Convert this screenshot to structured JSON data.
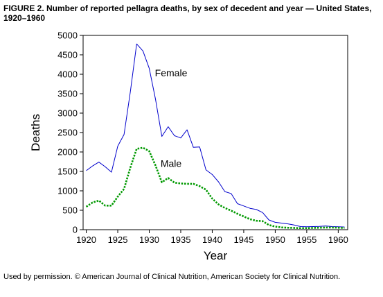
{
  "figure": {
    "title": "FIGURE 2. Number of reported pellagra deaths, by sex of decedent and year — United States, 1920–1960",
    "footnote": "Used by permission. © American Journal of Clinical Nutrition, American Society for Clinical Nutrition."
  },
  "chart_data": {
    "type": "line",
    "title": "FIGURE 2. Number of reported pellagra deaths, by sex of decedent and year — United States, 1920–1960",
    "xlabel": "Year",
    "ylabel": "Deaths",
    "xlim": [
      1919.5,
      1961.5
    ],
    "ylim": [
      0,
      5000
    ],
    "x_ticks": [
      1920,
      1925,
      1930,
      1935,
      1940,
      1945,
      1950,
      1955,
      1960
    ],
    "y_ticks": [
      0,
      500,
      1000,
      1500,
      2000,
      2500,
      3000,
      3500,
      4000,
      4500,
      5000
    ],
    "grid": false,
    "legend": "none",
    "x": [
      1920,
      1921,
      1922,
      1923,
      1924,
      1925,
      1926,
      1927,
      1928,
      1929,
      1930,
      1931,
      1932,
      1933,
      1934,
      1935,
      1936,
      1937,
      1938,
      1939,
      1940,
      1941,
      1942,
      1943,
      1944,
      1945,
      1946,
      1947,
      1948,
      1949,
      1950,
      1951,
      1952,
      1953,
      1954,
      1955,
      1956,
      1957,
      1958,
      1959,
      1960,
      1961
    ],
    "series": [
      {
        "name": "Female",
        "color": "#0000cc",
        "style": "solid",
        "values": [
          1520,
          1640,
          1740,
          1620,
          1480,
          2150,
          2450,
          3550,
          4780,
          4600,
          4150,
          3350,
          2400,
          2650,
          2420,
          2360,
          2570,
          2120,
          2130,
          1540,
          1420,
          1230,
          980,
          930,
          670,
          610,
          550,
          520,
          440,
          250,
          190,
          170,
          150,
          120,
          80,
          75,
          80,
          85,
          95,
          80,
          75,
          70
        ]
      },
      {
        "name": "Male",
        "color": "#009900",
        "style": "dotted",
        "values": [
          590,
          700,
          750,
          620,
          620,
          850,
          1050,
          1600,
          2080,
          2110,
          2020,
          1650,
          1220,
          1330,
          1210,
          1190,
          1180,
          1180,
          1120,
          1030,
          800,
          650,
          560,
          490,
          410,
          340,
          270,
          230,
          220,
          120,
          80,
          60,
          50,
          45,
          40,
          40,
          45,
          50,
          55,
          55,
          50,
          45
        ]
      }
    ]
  }
}
